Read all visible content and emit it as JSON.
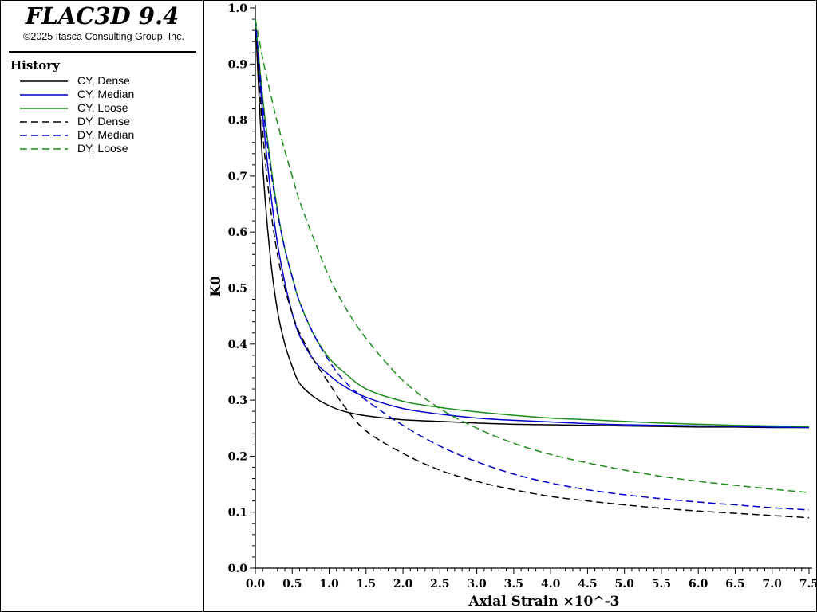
{
  "app": {
    "title": "FLAC3D 9.4",
    "copyright": "©2025 Itasca Consulting Group, Inc."
  },
  "sidebar": {
    "heading": "History",
    "legend": [
      {
        "label": "CY, Dense",
        "color": "#000000",
        "dash": "solid"
      },
      {
        "label": "CY, Median",
        "color": "#0000cc",
        "dash": "solid"
      },
      {
        "label": "CY, Loose",
        "color": "#1a8c1a",
        "dash": "solid"
      },
      {
        "label": "DY, Dense",
        "color": "#000000",
        "dash": "dashed"
      },
      {
        "label": "DY, Median",
        "color": "#0000cc",
        "dash": "dashed"
      },
      {
        "label": "DY, Loose",
        "color": "#1a8c1a",
        "dash": "dashed"
      }
    ]
  },
  "chart_data": {
    "type": "line",
    "title": "",
    "xlabel": "Axial Strain ×10^-3",
    "ylabel": "K0",
    "xlim": [
      0,
      7.5
    ],
    "ylim": [
      0,
      1.0
    ],
    "x_ticks": [
      "0.0",
      "0.5",
      "1.0",
      "1.5",
      "2.0",
      "2.5",
      "3.0",
      "3.5",
      "4.0",
      "4.5",
      "5.0",
      "5.5",
      "6.0",
      "6.5",
      "7.0",
      "7.5"
    ],
    "y_ticks": [
      "0.0",
      "0.1",
      "0.2",
      "0.3",
      "0.4",
      "0.5",
      "0.6",
      "0.7",
      "0.8",
      "0.9",
      "1.0"
    ],
    "grid": false,
    "x": [
      0,
      0.1,
      0.2,
      0.3,
      0.4,
      0.5,
      0.6,
      0.8,
      1.0,
      1.2,
      1.5,
      2.0,
      2.5,
      3.0,
      3.5,
      4.0,
      4.5,
      5.0,
      5.5,
      6.0,
      6.5,
      7.0,
      7.5
    ],
    "series": [
      {
        "name": "CY, Dense",
        "color": "#000000",
        "dash": "solid",
        "values": [
          0.98,
          0.72,
          0.56,
          0.46,
          0.4,
          0.36,
          0.33,
          0.305,
          0.29,
          0.28,
          0.272,
          0.265,
          0.262,
          0.259,
          0.257,
          0.256,
          0.255,
          0.254,
          0.253,
          0.252,
          0.252,
          0.251,
          0.251
        ]
      },
      {
        "name": "CY, Median",
        "color": "#0000cc",
        "dash": "solid",
        "values": [
          0.98,
          0.81,
          0.68,
          0.58,
          0.51,
          0.455,
          0.415,
          0.37,
          0.345,
          0.325,
          0.305,
          0.285,
          0.275,
          0.268,
          0.264,
          0.261,
          0.258,
          0.256,
          0.255,
          0.254,
          0.253,
          0.252,
          0.251
        ]
      },
      {
        "name": "CY, Loose",
        "color": "#1a8c1a",
        "dash": "solid",
        "values": [
          0.98,
          0.84,
          0.73,
          0.64,
          0.57,
          0.52,
          0.475,
          0.415,
          0.375,
          0.35,
          0.32,
          0.298,
          0.287,
          0.279,
          0.273,
          0.268,
          0.265,
          0.262,
          0.259,
          0.257,
          0.255,
          0.254,
          0.253
        ]
      },
      {
        "name": "DY, Dense",
        "color": "#000000",
        "dash": "dashed",
        "values": [
          0.98,
          0.78,
          0.65,
          0.56,
          0.5,
          0.455,
          0.42,
          0.37,
          0.33,
          0.29,
          0.245,
          0.205,
          0.175,
          0.155,
          0.14,
          0.128,
          0.12,
          0.113,
          0.107,
          0.102,
          0.098,
          0.094,
          0.09
        ]
      },
      {
        "name": "DY, Median",
        "color": "#0000cc",
        "dash": "dashed",
        "values": [
          0.98,
          0.83,
          0.72,
          0.635,
          0.57,
          0.52,
          0.475,
          0.415,
          0.37,
          0.335,
          0.3,
          0.255,
          0.218,
          0.19,
          0.168,
          0.152,
          0.14,
          0.131,
          0.124,
          0.118,
          0.113,
          0.108,
          0.104
        ]
      },
      {
        "name": "DY, Loose",
        "color": "#1a8c1a",
        "dash": "dashed",
        "values": [
          0.98,
          0.91,
          0.85,
          0.795,
          0.745,
          0.7,
          0.655,
          0.585,
          0.52,
          0.47,
          0.41,
          0.335,
          0.285,
          0.25,
          0.223,
          0.203,
          0.188,
          0.175,
          0.164,
          0.155,
          0.148,
          0.141,
          0.135
        ]
      }
    ]
  }
}
